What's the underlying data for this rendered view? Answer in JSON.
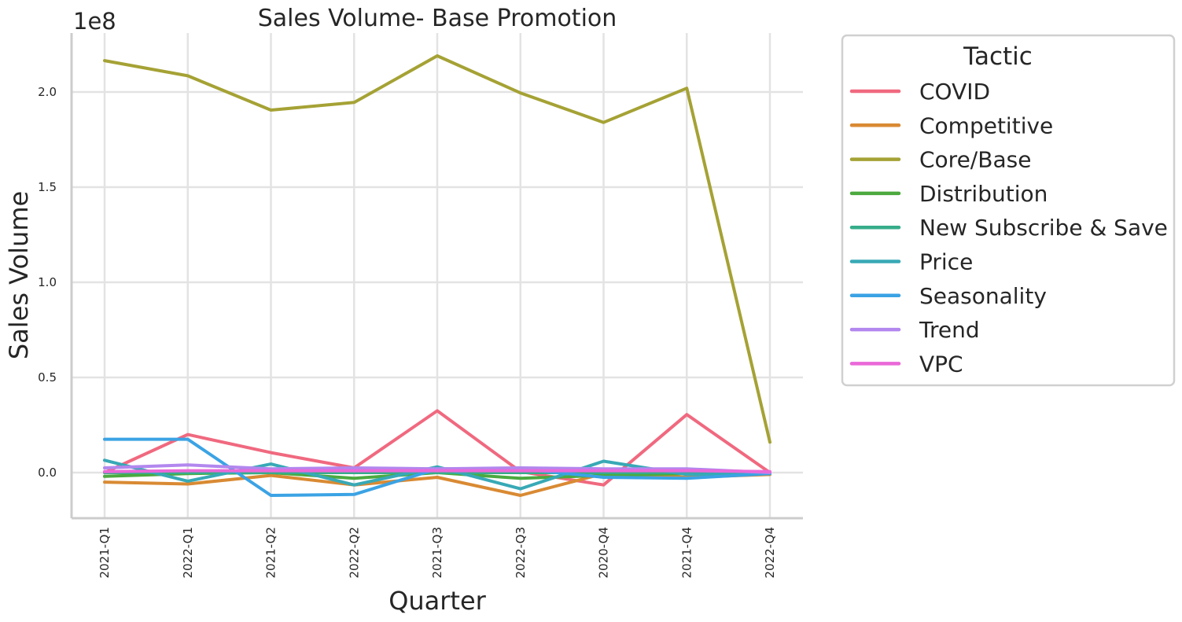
{
  "chart_data": {
    "type": "line",
    "title": "Sales Volume- Base Promotion",
    "xlabel": "Quarter",
    "ylabel": "Sales Volume",
    "y_offset_label": "1e8",
    "categories": [
      "2021-Q1",
      "2022-Q1",
      "2021-Q2",
      "2022-Q2",
      "2021-Q3",
      "2022-Q3",
      "2020-Q4",
      "2021-Q4",
      "2022-Q4"
    ],
    "y_ticks": [
      0.0,
      0.5,
      1.0,
      1.5,
      2.0
    ],
    "y_tick_labels": [
      "0.0",
      "0.5",
      "1.0",
      "1.5",
      "2.0"
    ],
    "ylim": [
      -0.24,
      2.31
    ],
    "grid": true,
    "legend": {
      "title": "Tactic",
      "placement": "outside-right"
    },
    "series": [
      {
        "name": "COVID",
        "color": "#f0697f",
        "values": [
          0.0,
          0.2,
          0.105,
          0.025,
          0.325,
          0.005,
          -0.065,
          0.305,
          0.0
        ]
      },
      {
        "name": "Competitive",
        "color": "#d98a33",
        "values": [
          -0.05,
          -0.06,
          -0.015,
          -0.065,
          -0.025,
          -0.12,
          -0.005,
          -0.025,
          -0.01
        ]
      },
      {
        "name": "Core/Base",
        "color": "#a5a235",
        "values": [
          2.165,
          2.085,
          1.905,
          1.945,
          2.19,
          1.995,
          1.84,
          2.02,
          0.16
        ]
      },
      {
        "name": "Distribution",
        "color": "#4ca93f",
        "values": [
          -0.02,
          -0.005,
          0.0,
          -0.03,
          0.0,
          -0.03,
          -0.015,
          -0.005,
          -0.005
        ]
      },
      {
        "name": "New Subscribe & Save",
        "color": "#36ad8a",
        "values": [
          0.0,
          0.0,
          0.0,
          0.0,
          0.0,
          0.0,
          0.0,
          0.0,
          0.0
        ]
      },
      {
        "name": "Price",
        "color": "#38a9b6",
        "values": [
          0.065,
          -0.045,
          0.045,
          -0.065,
          0.03,
          -0.085,
          0.06,
          -0.01,
          -0.005
        ]
      },
      {
        "name": "Seasonality",
        "color": "#3ba3e4",
        "values": [
          0.175,
          0.175,
          -0.12,
          -0.115,
          0.02,
          0.02,
          -0.025,
          -0.03,
          -0.005
        ]
      },
      {
        "name": "Trend",
        "color": "#b287ee",
        "values": [
          0.025,
          0.04,
          0.02,
          0.025,
          0.02,
          0.025,
          0.02,
          0.02,
          0.0
        ]
      },
      {
        "name": "VPC",
        "color": "#ea68d8",
        "values": [
          0.005,
          0.01,
          0.01,
          0.01,
          0.01,
          0.01,
          0.01,
          0.01,
          0.005
        ]
      }
    ]
  }
}
